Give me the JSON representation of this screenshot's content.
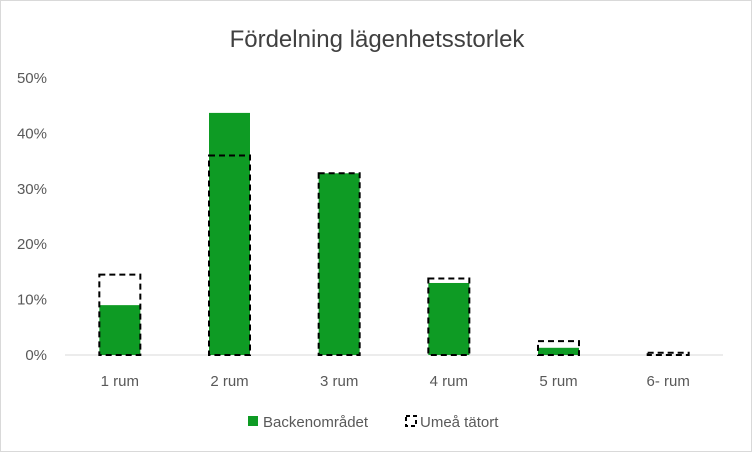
{
  "chart_data": {
    "type": "bar",
    "title": "Fördelning lägenhetsstorlek",
    "categories": [
      "1 rum",
      "2 rum",
      "3 rum",
      "4 rum",
      "5 rum",
      "6- rum"
    ],
    "series": [
      {
        "name": "Backenområdet",
        "style": "solid-fill",
        "color": "#0e9b24",
        "values": [
          9.0,
          43.7,
          32.8,
          13.0,
          1.3,
          0.0
        ]
      },
      {
        "name": "Umeå tätort",
        "style": "dashed-outline",
        "color": "#000000",
        "values": [
          14.5,
          36.0,
          32.8,
          13.8,
          2.5,
          0.4
        ]
      }
    ],
    "y_ticks": [
      "0%",
      "10%",
      "20%",
      "30%",
      "40%",
      "50%"
    ],
    "ylim": [
      0,
      50
    ],
    "y_unit": "%",
    "xlabel": "",
    "ylabel": "",
    "grid": false,
    "legend_position": "bottom",
    "overlay": true
  }
}
